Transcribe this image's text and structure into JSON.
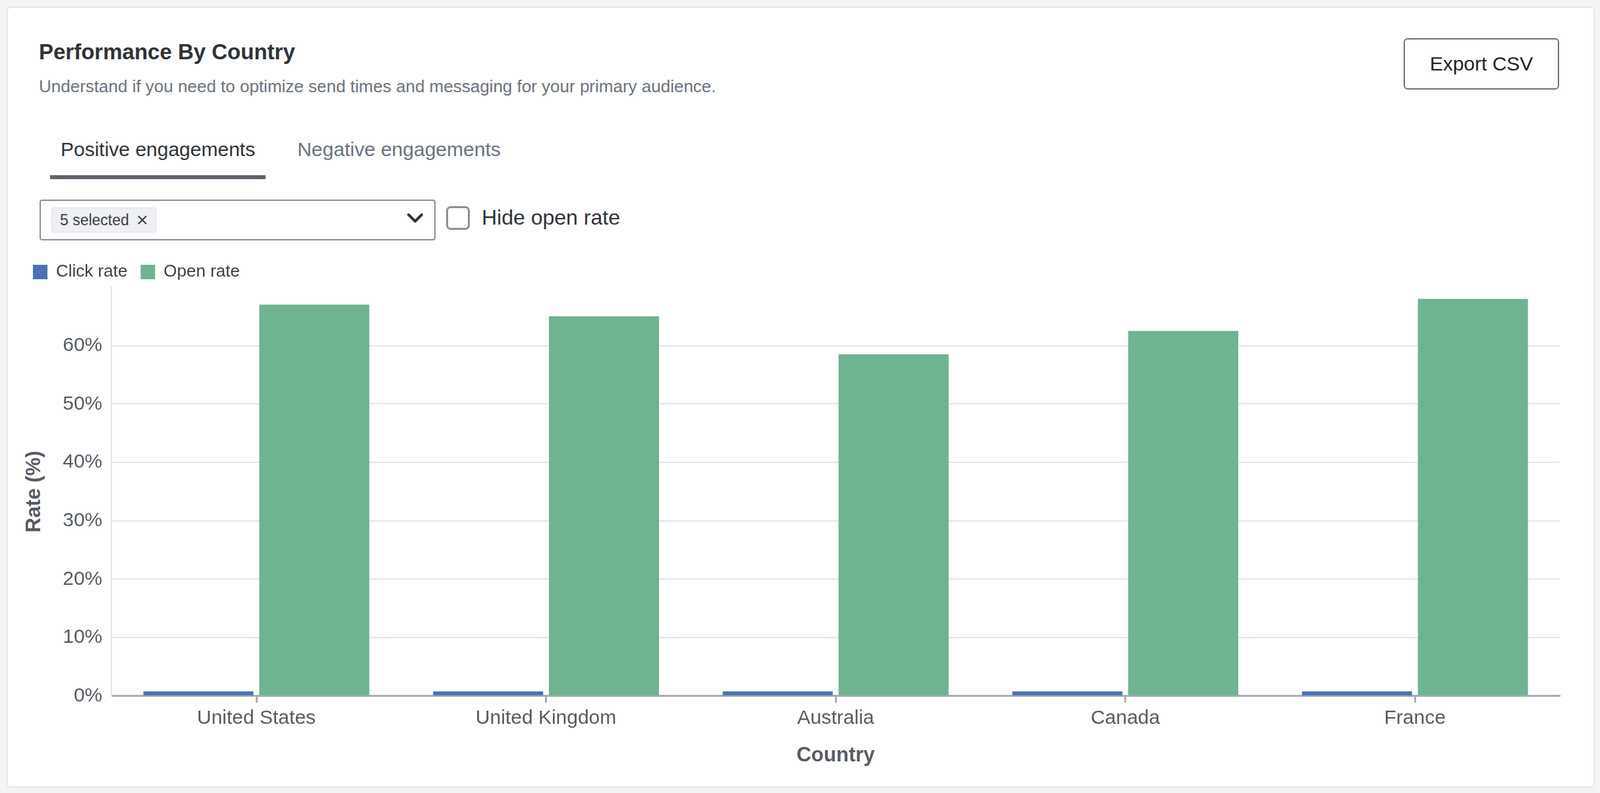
{
  "card": {
    "export_button": "Export CSV",
    "tabs": [
      "Positive engagements",
      "Negative engagements"
    ],
    "filter": "5 selected",
    "checkbox": "Hide open rate"
  },
  "chart_data": {
    "type": "bar",
    "title": "Performance By Country",
    "subtitle": "Understand if you need to optimize send times and messaging for your primary audience.",
    "x_label": "Country",
    "y_label": "Rate (%)",
    "categories": [
      "United States",
      "United Kingdom",
      "Australia",
      "Canada",
      "France"
    ],
    "series": [
      {
        "name": "Click rate",
        "color": "#4a72b5",
        "values": [
          0.8,
          0.8,
          0.8,
          0.8,
          0.8
        ]
      },
      {
        "name": "Open rate",
        "color": "#6fb390",
        "values": [
          67,
          65,
          58.5,
          62.5,
          68
        ]
      }
    ],
    "ylim": [
      0,
      70
    ],
    "yticks": [
      {
        "value": 0,
        "label": "0%"
      },
      {
        "value": 10,
        "label": "10%"
      },
      {
        "value": 20,
        "label": "20%"
      },
      {
        "value": 30,
        "label": "30%"
      },
      {
        "value": 40,
        "label": "40%"
      },
      {
        "value": 50,
        "label": "50%"
      },
      {
        "value": 60,
        "label": "60%"
      }
    ],
    "grid": true,
    "legend": "upper left"
  }
}
